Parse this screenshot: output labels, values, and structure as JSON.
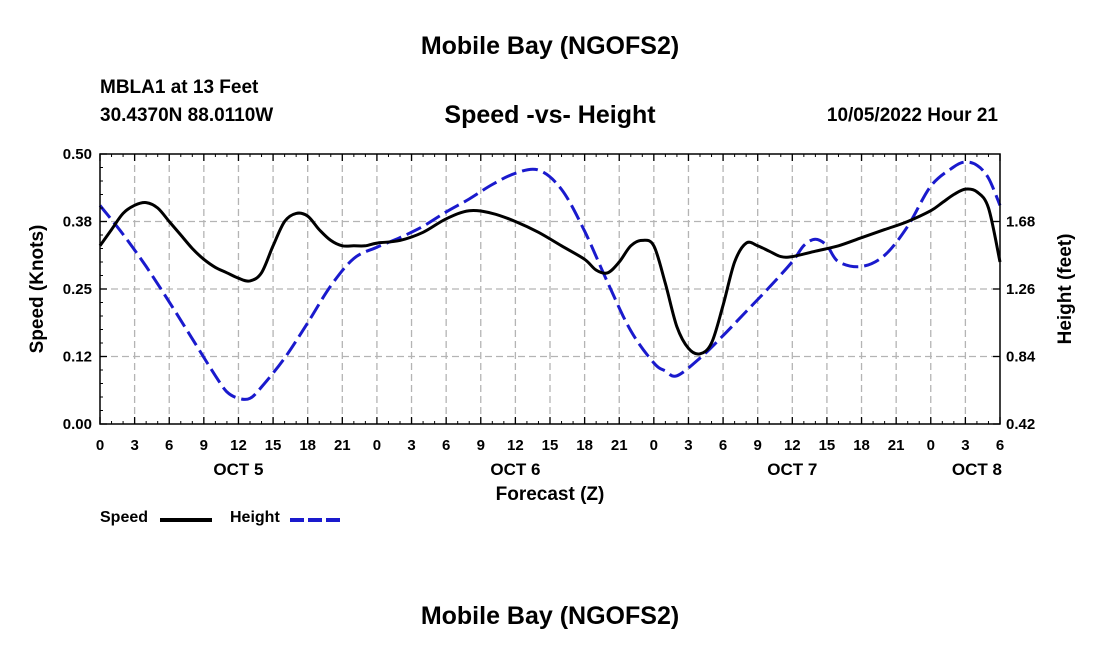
{
  "header": {
    "site_title": "Mobile Bay (NGOFS2)",
    "station_name": "MBLA1 at 13 Feet",
    "station_coords": "30.4370N  88.0110W",
    "run_time": "10/05/2022 Hour 21"
  },
  "footer": {
    "site_title": "Mobile Bay (NGOFS2)"
  },
  "chart_data": {
    "type": "line",
    "title": "Speed -vs- Height",
    "xlabel": "Forecast (Z)",
    "x_unit": "hours since 2022-10-05 00Z",
    "x_range": [
      0,
      78
    ],
    "x_tick_labels": [
      "0",
      "3",
      "6",
      "9",
      "12",
      "15",
      "18",
      "21",
      "0",
      "3",
      "6",
      "9",
      "12",
      "15",
      "18",
      "21",
      "0",
      "3",
      "6",
      "9",
      "12",
      "15",
      "18",
      "21",
      "0",
      "3",
      "6"
    ],
    "day_labels": [
      {
        "label": "OCT 5",
        "hour": 12
      },
      {
        "label": "OCT 6",
        "hour": 36
      },
      {
        "label": "OCT 7",
        "hour": 60
      },
      {
        "label": "OCT 8",
        "hour": 76
      }
    ],
    "y_left": {
      "label": "Speed (Knots)",
      "range": [
        0,
        0.5
      ],
      "ticks": [
        0,
        0.125,
        0.25,
        0.375,
        0.5
      ],
      "tick_labels": [
        "0.00",
        "0.12",
        "0.25",
        "0.38",
        "0.50"
      ]
    },
    "y_right": {
      "label": "Height (feet)",
      "range": [
        0.42,
        2.1
      ],
      "ticks": [
        0.42,
        0.84,
        1.26,
        1.68
      ],
      "tick_labels": [
        "0.42",
        "0.84",
        "1.26",
        "1.68"
      ]
    },
    "grid": true,
    "legend_position": "bottom-left",
    "series": [
      {
        "name": "Speed",
        "axis": "left",
        "color": "#000000",
        "dash": "solid",
        "x": [
          0,
          1,
          2,
          3,
          4,
          5,
          6,
          7,
          8,
          9,
          10,
          11,
          12,
          13,
          14,
          15,
          16,
          17,
          18,
          19,
          20,
          21,
          22,
          23,
          24,
          26,
          28,
          30,
          32,
          34,
          36,
          38,
          40,
          42,
          43,
          44,
          45,
          46,
          47,
          48,
          49,
          50,
          51,
          52,
          53,
          54,
          55,
          56,
          57,
          58,
          59,
          60,
          62,
          64,
          66,
          68,
          70,
          72,
          73,
          74,
          75,
          76,
          77,
          78
        ],
        "y": [
          0.33,
          0.36,
          0.39,
          0.405,
          0.41,
          0.4,
          0.375,
          0.35,
          0.325,
          0.305,
          0.29,
          0.28,
          0.27,
          0.265,
          0.28,
          0.33,
          0.375,
          0.39,
          0.385,
          0.36,
          0.34,
          0.33,
          0.33,
          0.33,
          0.335,
          0.34,
          0.355,
          0.38,
          0.395,
          0.39,
          0.375,
          0.355,
          0.33,
          0.305,
          0.285,
          0.28,
          0.3,
          0.33,
          0.34,
          0.33,
          0.26,
          0.18,
          0.14,
          0.13,
          0.15,
          0.22,
          0.3,
          0.335,
          0.33,
          0.32,
          0.31,
          0.31,
          0.32,
          0.33,
          0.345,
          0.36,
          0.375,
          0.395,
          0.41,
          0.425,
          0.435,
          0.43,
          0.4,
          0.3
        ]
      },
      {
        "name": "Height",
        "axis": "right",
        "color": "#1a1acd",
        "dash": "dashed",
        "x": [
          0,
          2,
          4,
          6,
          8,
          10,
          11,
          12,
          13,
          14,
          16,
          18,
          20,
          22,
          24,
          26,
          28,
          30,
          32,
          34,
          36,
          38,
          40,
          42,
          44,
          46,
          48,
          49,
          50,
          52,
          54,
          56,
          58,
          60,
          61,
          62,
          63,
          64,
          66,
          68,
          70,
          72,
          74,
          75,
          76,
          77,
          78
        ],
        "y": [
          1.78,
          1.6,
          1.4,
          1.18,
          0.95,
          0.72,
          0.62,
          0.58,
          0.58,
          0.65,
          0.83,
          1.05,
          1.28,
          1.45,
          1.52,
          1.58,
          1.65,
          1.74,
          1.82,
          1.91,
          1.98,
          2.0,
          1.88,
          1.62,
          1.3,
          1.0,
          0.8,
          0.75,
          0.72,
          0.83,
          0.97,
          1.12,
          1.27,
          1.43,
          1.53,
          1.57,
          1.53,
          1.43,
          1.4,
          1.47,
          1.65,
          1.9,
          2.02,
          2.05,
          2.03,
          1.95,
          1.78
        ]
      }
    ]
  }
}
